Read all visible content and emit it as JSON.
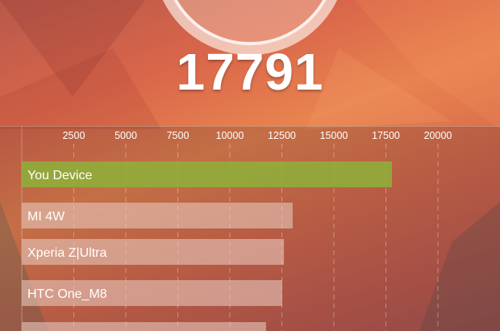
{
  "score": "17791",
  "colors": {
    "highlight_bar": "#8db23a",
    "other_bar": "#e6c6bb",
    "grid": "#ffffff"
  },
  "chart_data": {
    "type": "bar",
    "orientation": "horizontal",
    "xlim": [
      0,
      22000
    ],
    "ticks": [
      "2500",
      "5000",
      "7500",
      "10000",
      "12500",
      "15000",
      "17500",
      "20000"
    ],
    "tick_values": [
      2500,
      5000,
      7500,
      10000,
      12500,
      15000,
      17500,
      20000
    ],
    "grid": "dashed vertical",
    "categories": [
      "You Device",
      "MI 4W",
      "Xperia Z|Ultra",
      "HTC One_M8",
      ""
    ],
    "values": [
      17791,
      13020,
      12600,
      12520,
      11740
    ],
    "highlight_index": 0
  }
}
